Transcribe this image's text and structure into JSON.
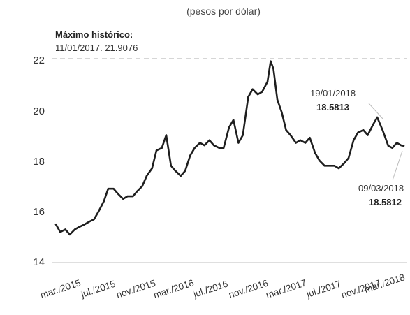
{
  "chart_data": {
    "type": "line",
    "subtitle": "(pesos por dólar)",
    "xlabel": "",
    "ylabel": "",
    "ylim": [
      14,
      22
    ],
    "yticks": [
      14,
      16,
      18,
      20,
      22
    ],
    "xticks": [
      "mar./2015",
      "jul./2015",
      "nov./2015",
      "mar./2016",
      "jul./2016",
      "nov./2016",
      "mar./2017",
      "jul./2017",
      "nov./2017",
      "mar./2018"
    ],
    "reference_line": {
      "value": 22,
      "style": "dashed"
    },
    "annotations": {
      "max_title": "Máximo histórico:",
      "max_detail": "11/01/2017. 21.9076",
      "jan_date": "19/01/2018",
      "jan_value": "18.5813",
      "mar_date": "09/03/2018",
      "mar_value": "18.5812"
    },
    "series": [
      {
        "x": [
          "2015-03-02",
          "2015-03-16",
          "2015-04-01",
          "2015-04-15",
          "2015-05-01",
          "2015-05-15",
          "2015-06-01",
          "2015-06-15",
          "2015-07-01",
          "2015-07-15",
          "2015-08-01",
          "2015-08-15",
          "2015-09-01",
          "2015-09-15",
          "2015-10-01",
          "2015-10-15",
          "2015-11-01",
          "2015-11-15",
          "2015-12-01",
          "2015-12-15",
          "2016-01-01",
          "2016-01-15",
          "2016-02-01",
          "2016-02-15",
          "2016-03-01",
          "2016-03-15",
          "2016-04-01",
          "2016-04-15",
          "2016-05-01",
          "2016-05-15",
          "2016-06-01",
          "2016-06-15",
          "2016-07-01",
          "2016-07-15",
          "2016-08-01",
          "2016-08-15",
          "2016-09-01",
          "2016-09-15",
          "2016-10-01",
          "2016-10-15",
          "2016-11-01",
          "2016-11-15",
          "2016-12-01",
          "2016-12-15",
          "2017-01-01",
          "2017-01-11",
          "2017-01-20",
          "2017-02-01",
          "2017-02-15",
          "2017-03-01",
          "2017-03-15",
          "2017-04-01",
          "2017-04-15",
          "2017-05-01",
          "2017-05-15",
          "2017-06-01",
          "2017-06-15",
          "2017-07-01",
          "2017-07-15",
          "2017-08-01",
          "2017-08-15",
          "2017-09-01",
          "2017-09-15",
          "2017-10-01",
          "2017-10-15",
          "2017-11-01",
          "2017-11-15",
          "2017-12-01",
          "2017-12-15",
          "2018-01-01",
          "2018-01-19",
          "2018-02-01",
          "2018-02-15",
          "2018-03-01",
          "2018-03-09"
        ],
        "values": [
          15.5,
          15.2,
          15.3,
          15.1,
          15.3,
          15.4,
          15.5,
          15.6,
          15.7,
          16.0,
          16.4,
          16.9,
          16.9,
          16.7,
          16.5,
          16.6,
          16.6,
          16.8,
          17.0,
          17.4,
          17.7,
          18.4,
          18.5,
          19.0,
          17.8,
          17.6,
          17.4,
          17.6,
          18.2,
          18.5,
          18.7,
          18.6,
          18.8,
          18.6,
          18.5,
          18.5,
          19.3,
          19.6,
          18.7,
          19.0,
          20.5,
          20.8,
          20.6,
          20.7,
          21.1,
          21.9,
          21.6,
          20.4,
          19.9,
          19.2,
          19.0,
          18.7,
          18.8,
          18.7,
          18.9,
          18.3,
          18.0,
          17.8,
          17.8,
          17.8,
          17.7,
          17.9,
          18.1,
          18.8,
          19.1,
          19.2,
          19.0,
          19.4,
          19.7,
          19.2,
          18.58,
          18.5,
          18.7,
          18.6,
          18.58
        ]
      }
    ]
  }
}
